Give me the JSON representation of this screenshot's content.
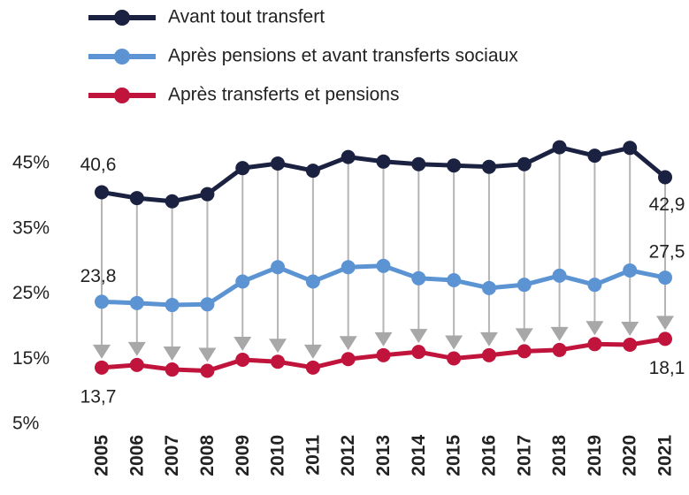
{
  "chart_data": {
    "type": "line",
    "categories": [
      "2005",
      "2006",
      "2007",
      "2008",
      "2009",
      "2010",
      "2011",
      "2012",
      "2013",
      "2014",
      "2015",
      "2016",
      "2017",
      "2018",
      "2019",
      "2020",
      "2021"
    ],
    "series": [
      {
        "name": "Avant tout transfert",
        "color": "#1b2140",
        "values": [
          40.6,
          39.7,
          39.2,
          40.3,
          44.3,
          45.0,
          43.9,
          46.0,
          45.3,
          44.9,
          44.7,
          44.5,
          44.9,
          47.5,
          46.2,
          47.4,
          42.9
        ],
        "value_labels": [
          "40,6",
          null,
          null,
          null,
          null,
          null,
          null,
          null,
          null,
          null,
          null,
          null,
          null,
          null,
          null,
          null,
          "42,9"
        ]
      },
      {
        "name": "Après pensions et avant transferts sociaux",
        "color": "#5b93d3",
        "values": [
          23.8,
          23.6,
          23.3,
          23.4,
          26.9,
          29.1,
          26.9,
          29.1,
          29.3,
          27.4,
          27.1,
          25.9,
          26.4,
          27.8,
          26.4,
          28.6,
          27.5
        ],
        "value_labels": [
          "23,8",
          null,
          null,
          null,
          null,
          null,
          null,
          null,
          null,
          null,
          null,
          null,
          null,
          null,
          null,
          null,
          "27,5"
        ]
      },
      {
        "name": "Après transferts et pensions",
        "color": "#c0143c",
        "values": [
          13.7,
          14.1,
          13.4,
          13.2,
          14.9,
          14.6,
          13.7,
          15.0,
          15.6,
          16.1,
          15.1,
          15.6,
          16.2,
          16.4,
          17.3,
          17.2,
          18.1
        ],
        "value_labels": [
          "13,7",
          null,
          null,
          null,
          null,
          null,
          null,
          null,
          null,
          null,
          null,
          null,
          null,
          null,
          null,
          null,
          "18,1"
        ]
      }
    ],
    "ylim": [
      5,
      45
    ],
    "yticks": [
      {
        "value": 5,
        "label": "5%"
      },
      {
        "value": 15,
        "label": "15%"
      },
      {
        "value": 25,
        "label": "25%"
      },
      {
        "value": 35,
        "label": "35%"
      },
      {
        "value": 45,
        "label": "45%"
      }
    ],
    "legend": "top-left"
  }
}
